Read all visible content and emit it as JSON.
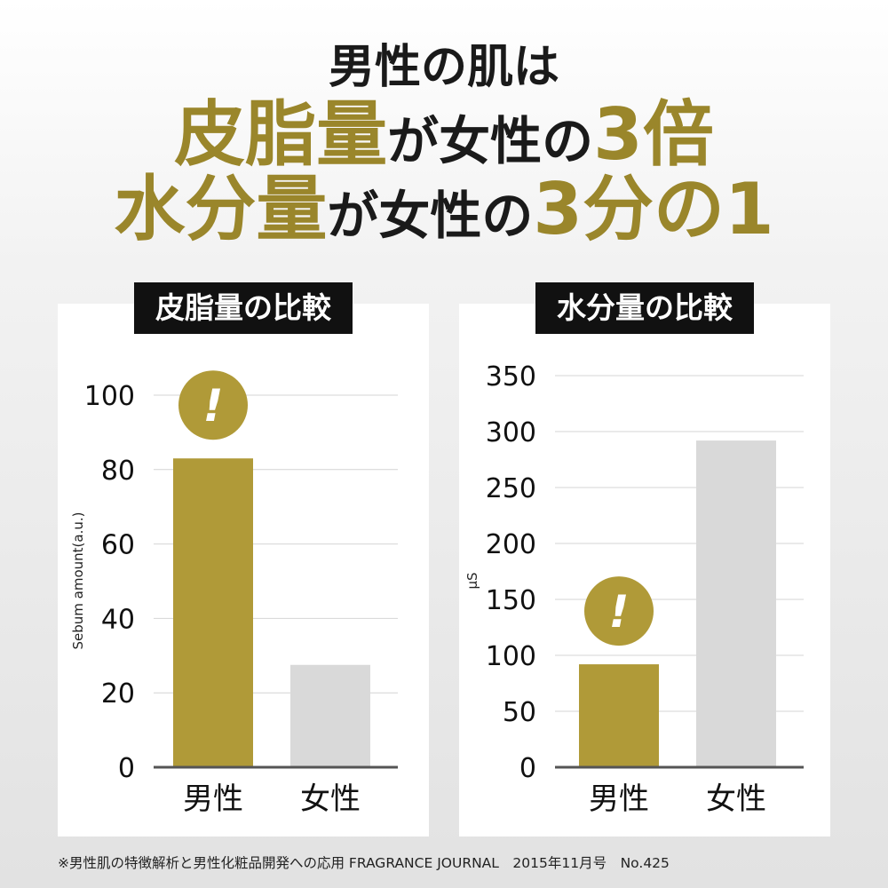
{
  "headline": {
    "line1": "男性の肌は",
    "line2_highlight": "皮脂量",
    "line2_rest": "が女性の",
    "line2_num": "3倍",
    "line3_highlight": "水分量",
    "line3_rest": "が女性の",
    "line3_num": "3分の1"
  },
  "footnote": "※男性肌の特徴解析と男性化粧品開発への応用 FRAGRANCE JOURNAL　2015年11月号　No.425",
  "colors": {
    "accent": "#b09a38",
    "muted": "#d9d9d9",
    "title_bg": "#111111"
  },
  "alert_icon_text": "!",
  "chart_data": [
    {
      "type": "bar",
      "title": "皮脂量の比較",
      "ylabel": "Sebum amount(a.u.)",
      "categories": [
        "男性",
        "女性"
      ],
      "values": [
        83,
        27.5
      ],
      "ylim": [
        0,
        100
      ],
      "yticks": [
        0,
        20,
        40,
        60,
        80,
        100
      ],
      "highlight_index": 0,
      "grid": true
    },
    {
      "type": "bar",
      "title": "水分量の比較",
      "ylabel": "μS",
      "categories": [
        "男性",
        "女性"
      ],
      "values": [
        92,
        292
      ],
      "ylim": [
        0,
        350
      ],
      "yticks": [
        0,
        50,
        100,
        150,
        200,
        250,
        300,
        350
      ],
      "highlight_index": 0,
      "grid": true
    }
  ]
}
